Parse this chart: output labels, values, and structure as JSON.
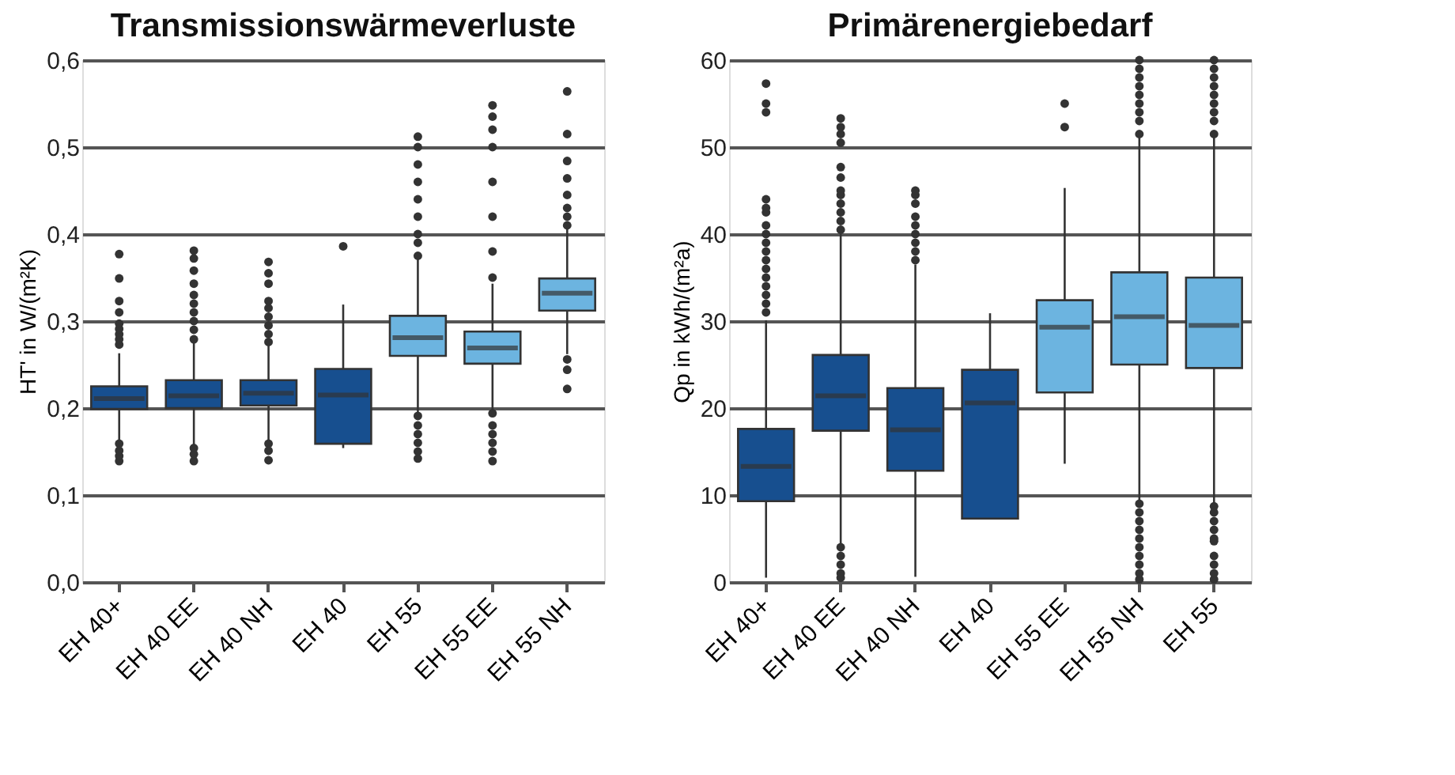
{
  "chart_data": [
    {
      "type": "box",
      "title": "Transmissionswärmeverluste",
      "ylabel": "HT' in W/(m²K)",
      "categories": [
        "EH 40+",
        "EH 40 EE",
        "EH 40 NH",
        "EH 40",
        "EH 55",
        "EH 55 EE",
        "EH 55 NH"
      ],
      "colors": [
        "#174f8f",
        "#174f8f",
        "#174f8f",
        "#174f8f",
        "#6cb4e0",
        "#6cb4e0",
        "#6cb4e0"
      ],
      "boxes": [
        {
          "low": 0.162,
          "q1": 0.199,
          "median": 0.211,
          "q3": 0.225,
          "high": 0.263,
          "outliers": [
            0.139,
            0.145,
            0.151,
            0.159,
            0.273,
            0.279,
            0.285,
            0.291,
            0.297,
            0.31,
            0.323,
            0.349,
            0.377
          ]
        },
        {
          "low": 0.156,
          "q1": 0.2,
          "median": 0.214,
          "q3": 0.232,
          "high": 0.276,
          "outliers": [
            0.139,
            0.147,
            0.154,
            0.279,
            0.29,
            0.3,
            0.31,
            0.32,
            0.33,
            0.343,
            0.358,
            0.372,
            0.381
          ]
        },
        {
          "low": 0.162,
          "q1": 0.203,
          "median": 0.217,
          "q3": 0.232,
          "high": 0.273,
          "outliers": [
            0.14,
            0.151,
            0.159,
            0.276,
            0.285,
            0.295,
            0.305,
            0.315,
            0.323,
            0.343,
            0.355,
            0.368
          ]
        },
        {
          "low": 0.154,
          "q1": 0.159,
          "median": 0.215,
          "q3": 0.245,
          "high": 0.319,
          "outliers": [
            0.386
          ]
        },
        {
          "low": 0.194,
          "q1": 0.26,
          "median": 0.281,
          "q3": 0.306,
          "high": 0.372,
          "outliers": [
            0.142,
            0.15,
            0.16,
            0.17,
            0.18,
            0.191,
            0.375,
            0.39,
            0.4,
            0.42,
            0.44,
            0.46,
            0.48,
            0.5,
            0.512
          ]
        },
        {
          "low": 0.197,
          "q1": 0.251,
          "median": 0.269,
          "q3": 0.288,
          "high": 0.343,
          "outliers": [
            0.139,
            0.15,
            0.16,
            0.17,
            0.18,
            0.194,
            0.35,
            0.38,
            0.42,
            0.46,
            0.5,
            0.52,
            0.535,
            0.548
          ]
        },
        {
          "low": 0.262,
          "q1": 0.312,
          "median": 0.332,
          "q3": 0.349,
          "high": 0.407,
          "outliers": [
            0.222,
            0.244,
            0.256,
            0.41,
            0.42,
            0.43,
            0.445,
            0.464,
            0.484,
            0.515,
            0.564
          ]
        }
      ],
      "ylim": [
        0,
        0.6
      ],
      "yticks": [
        {
          "value": 0,
          "label": "0,0"
        },
        {
          "value": 0.1,
          "label": "0,1"
        },
        {
          "value": 0.2,
          "label": "0,2"
        },
        {
          "value": 0.3,
          "label": "0,3"
        },
        {
          "value": 0.4,
          "label": "0,4"
        },
        {
          "value": 0.5,
          "label": "0,5"
        },
        {
          "value": 0.6,
          "label": "0,6"
        }
      ],
      "grid": "y",
      "marker": "circle"
    },
    {
      "type": "box",
      "title": "Primärenergiebedarf",
      "ylabel": "Qp in kWh/(m²a)",
      "categories": [
        "EH 40+",
        "EH 40 EE",
        "EH 40 NH",
        "EH 40",
        "EH 55 EE",
        "EH 55 NH",
        "EH 55"
      ],
      "colors": [
        "#174f8f",
        "#174f8f",
        "#174f8f",
        "#174f8f",
        "#6cb4e0",
        "#6cb4e0",
        "#6cb4e0"
      ],
      "boxes": [
        {
          "low": 0.5,
          "q1": 9.3,
          "median": 13.3,
          "q3": 17.6,
          "high": 30.1,
          "outliers": [
            31,
            32,
            33,
            34,
            35,
            36,
            37,
            38,
            39,
            40,
            41,
            42.5,
            43,
            44,
            54,
            55,
            57.3
          ]
        },
        {
          "low": 4.4,
          "q1": 17.4,
          "median": 21.4,
          "q3": 26.1,
          "high": 40,
          "outliers": [
            0.5,
            1,
            2,
            3,
            4,
            40.5,
            41.5,
            42.5,
            43.5,
            44.5,
            45,
            46.5,
            47.7,
            50.5,
            51.5,
            52.3,
            53.3
          ]
        },
        {
          "low": 0.6,
          "q1": 12.8,
          "median": 17.5,
          "q3": 22.3,
          "high": 36.5,
          "outliers": [
            37,
            38,
            39,
            40,
            41,
            42,
            43.5,
            44.5,
            45
          ]
        },
        {
          "low": 7.3,
          "q1": 7.3,
          "median": 20.6,
          "q3": 24.4,
          "high": 30.9
        },
        {
          "low": 13.6,
          "q1": 21.8,
          "median": 29.3,
          "q3": 32.4,
          "high": 45.3,
          "outliers": [
            52.3,
            55
          ]
        },
        {
          "low": 9.3,
          "q1": 25,
          "median": 30.5,
          "q3": 35.6,
          "high": 51.2,
          "outliers": [
            0.3,
            1,
            2,
            3,
            4,
            5,
            6,
            7,
            8,
            9,
            51.5,
            53,
            54,
            55,
            56,
            57,
            58,
            59,
            60
          ]
        },
        {
          "low": 9,
          "q1": 24.6,
          "median": 29.5,
          "q3": 35,
          "high": 51.1,
          "outliers": [
            0.3,
            1,
            2,
            3,
            4.7,
            5,
            6,
            7,
            8,
            8.7,
            51.5,
            53,
            54,
            55,
            56,
            57,
            58,
            59,
            60
          ]
        }
      ],
      "ylim": [
        0,
        60
      ],
      "yticks": [
        0,
        10,
        20,
        30,
        40,
        50,
        60
      ],
      "grid": "y",
      "marker": "circle"
    }
  ]
}
